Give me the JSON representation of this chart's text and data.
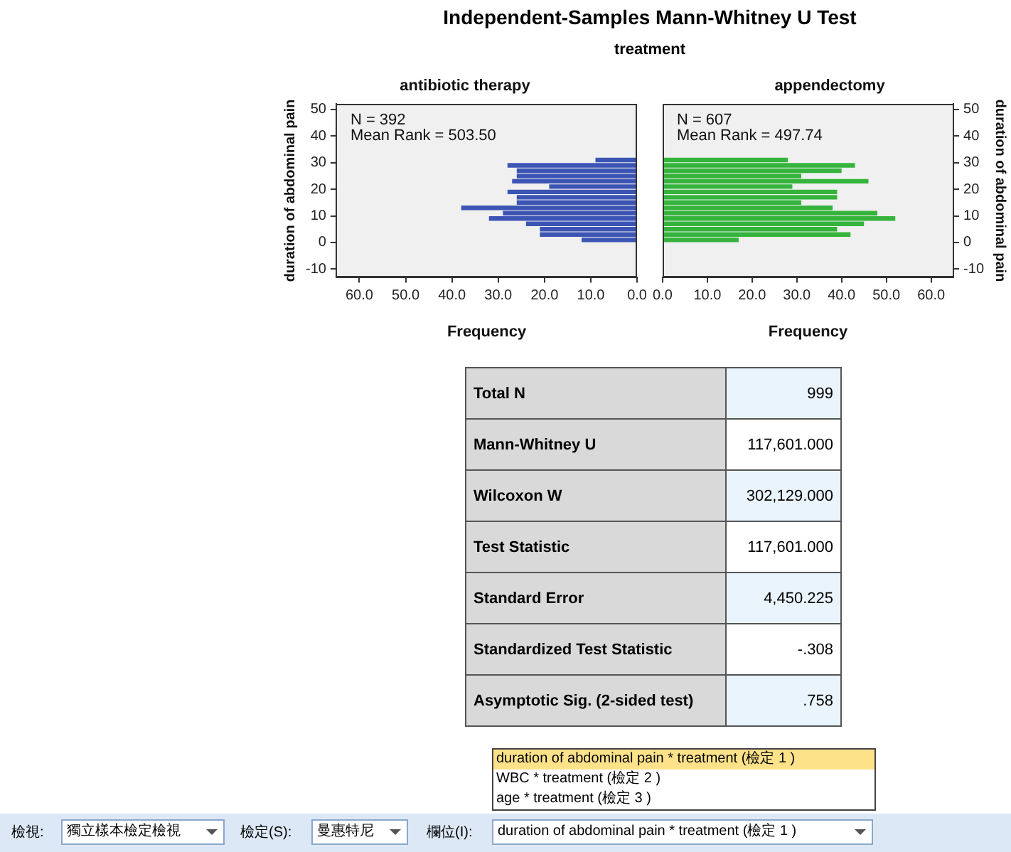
{
  "chart_data": [
    {
      "type": "other",
      "title": "Independent-Samples Mann-Whitney U Test",
      "subtitle": "treatment"
    },
    {
      "type": "bar",
      "orientation": "horizontal",
      "title": "antibiotic therapy",
      "xlabel": "Frequency",
      "ylabel": "duration of abdominal pain",
      "annotations": [
        "N = 392",
        "Mean Rank = 503.50"
      ],
      "x": [
        1,
        3,
        5,
        7,
        9,
        11,
        13,
        15,
        17,
        19,
        21,
        23,
        25,
        27,
        29,
        31
      ],
      "values": [
        12,
        21,
        21,
        24,
        32,
        29,
        38,
        26,
        26,
        28,
        19,
        27,
        26,
        26,
        28,
        9
      ],
      "color": "#3c55b4",
      "xlim": [
        65,
        0
      ],
      "xticks": [
        {
          "value": 60,
          "label": "60.0"
        },
        {
          "value": 50,
          "label": "50.0"
        },
        {
          "value": 40,
          "label": "40.0"
        },
        {
          "value": 30,
          "label": "30.0"
        },
        {
          "value": 20,
          "label": "20.0"
        },
        {
          "value": 10,
          "label": "10.0"
        },
        {
          "value": 0,
          "label": "0.0"
        }
      ],
      "ylim": [
        -13,
        52
      ],
      "yticks": [
        -10,
        0,
        10,
        20,
        30,
        40,
        50
      ]
    },
    {
      "type": "bar",
      "orientation": "horizontal",
      "title": "appendectomy",
      "xlabel": "Frequency",
      "ylabel": "duration of abdominal pain",
      "annotations": [
        "N = 607",
        "Mean Rank = 497.74"
      ],
      "x": [
        1,
        3,
        5,
        7,
        9,
        11,
        13,
        15,
        17,
        19,
        21,
        23,
        25,
        27,
        29,
        31
      ],
      "values": [
        17,
        42,
        39,
        45,
        52,
        48,
        38,
        31,
        39,
        39,
        29,
        46,
        31,
        40,
        43,
        28
      ],
      "color": "#35b43c",
      "xlim": [
        0,
        65
      ],
      "xticks": [
        {
          "value": 0,
          "label": "0.0"
        },
        {
          "value": 10,
          "label": "10.0"
        },
        {
          "value": 20,
          "label": "20.0"
        },
        {
          "value": 30,
          "label": "30.0"
        },
        {
          "value": 40,
          "label": "40.0"
        },
        {
          "value": 50,
          "label": "50.0"
        },
        {
          "value": 60,
          "label": "60.0"
        }
      ],
      "ylim": [
        -13,
        52
      ],
      "yticks": [
        -10,
        0,
        10,
        20,
        30,
        40,
        50
      ]
    },
    {
      "type": "other",
      "annotations": [
        "Total N",
        "999",
        "Mann-Whitney U",
        "117,601.000",
        "Wilcoxon W",
        "302,129.000",
        "Test Statistic",
        "117,601.000",
        "Standard Error",
        "4,450.225",
        "Standardized Test Statistic",
        "-.308",
        "Asymptotic Sig. (2-sided test)",
        ".758"
      ]
    },
    {
      "type": "other",
      "annotations": [
        "檢視:",
        "獨立樣本檢定檢視",
        "檢定(S):",
        "曼惠特尼",
        "欄位(I):",
        "duration of abdominal pain * treatment (檢定 1 )",
        "duration of abdominal pain * treatment (檢定 1 )",
        "WBC * treatment (檢定 2 )",
        "age * treatment (檢定 3 )"
      ]
    }
  ]
}
